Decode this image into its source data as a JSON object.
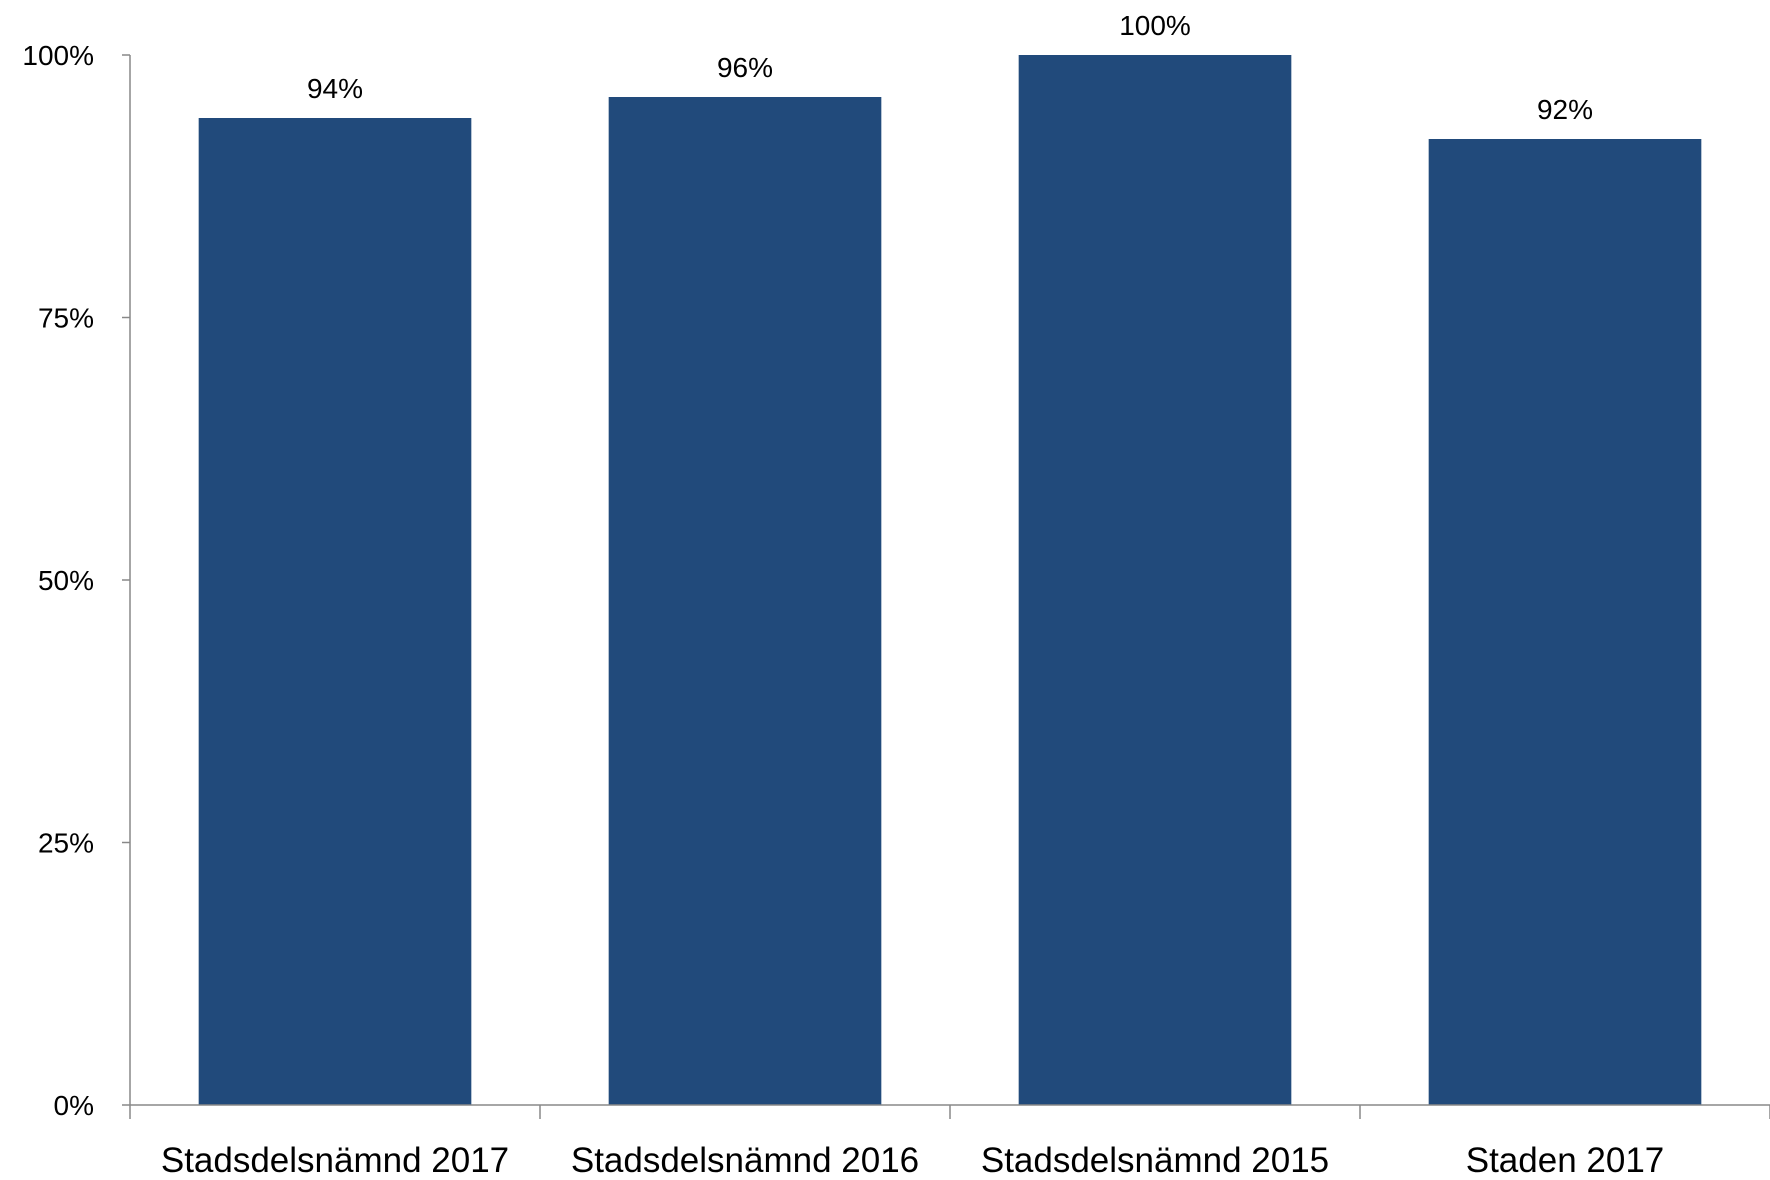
{
  "chart_data": {
    "type": "bar",
    "title": "",
    "xlabel": "",
    "ylabel": "",
    "categories": [
      "Stadsdelsnämnd 2017",
      "Stadsdelsnämnd 2016",
      "Stadsdelsnämnd 2015",
      "Staden 2017"
    ],
    "values": [
      94,
      96,
      100,
      92
    ],
    "data_labels": [
      "94%",
      "96%",
      "100%",
      "92%"
    ],
    "ylim": [
      0,
      100
    ],
    "yticks": [
      0,
      25,
      50,
      75,
      100
    ],
    "ytick_labels": [
      "0%",
      "25%",
      "50%",
      "75%",
      "100%"
    ],
    "grid": false,
    "legend": "none",
    "bar_color": "#214A7B",
    "axis_color": "#888888"
  }
}
